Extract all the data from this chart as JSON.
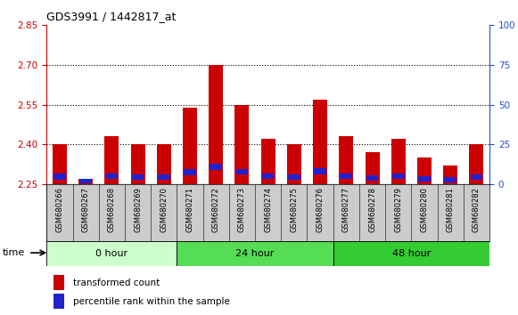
{
  "title": "GDS3991 / 1442817_at",
  "samples": [
    "GSM680266",
    "GSM680267",
    "GSM680268",
    "GSM680269",
    "GSM680270",
    "GSM680271",
    "GSM680272",
    "GSM680273",
    "GSM680274",
    "GSM680275",
    "GSM680276",
    "GSM680277",
    "GSM680278",
    "GSM680279",
    "GSM680280",
    "GSM680281",
    "GSM680282"
  ],
  "red_values": [
    2.4,
    2.27,
    2.43,
    2.4,
    2.4,
    2.54,
    2.7,
    2.55,
    2.42,
    2.4,
    2.57,
    2.43,
    2.37,
    2.42,
    2.35,
    2.32,
    2.4
  ],
  "blue_heights": [
    0.022,
    0.018,
    0.02,
    0.02,
    0.02,
    0.022,
    0.022,
    0.02,
    0.02,
    0.02,
    0.022,
    0.02,
    0.018,
    0.02,
    0.018,
    0.018,
    0.02
  ],
  "base": 2.25,
  "ylim_left": [
    2.25,
    2.85
  ],
  "ylim_right": [
    0,
    100
  ],
  "yticks_left": [
    2.25,
    2.4,
    2.55,
    2.7,
    2.85
  ],
  "yticks_right": [
    0,
    25,
    50,
    75,
    100
  ],
  "groups": [
    {
      "label": "0 hour",
      "start": 0,
      "end": 5,
      "color": "#ccffcc"
    },
    {
      "label": "24 hour",
      "start": 5,
      "end": 11,
      "color": "#55dd55"
    },
    {
      "label": "48 hour",
      "start": 11,
      "end": 17,
      "color": "#33cc33"
    }
  ],
  "bar_color_red": "#cc0000",
  "bar_color_blue": "#2222cc",
  "bar_width": 0.55,
  "sample_box_color": "#cccccc",
  "time_label": "time",
  "legend_red": "transformed count",
  "legend_blue": "percentile rank within the sample",
  "left_axis_color": "#cc0000",
  "right_axis_color": "#2255cc",
  "title_fontsize": 9,
  "tick_fontsize": 7.5,
  "sample_fontsize": 6,
  "group_fontsize": 8,
  "legend_fontsize": 7.5
}
